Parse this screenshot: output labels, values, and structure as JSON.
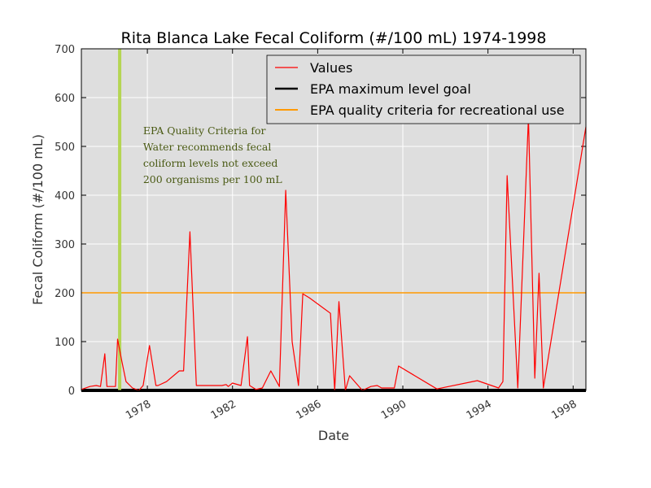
{
  "chart_data": {
    "type": "line",
    "title": "Rita Blanca Lake Fecal Coliform (#/100 mL) 1974-1998",
    "xlabel": "Date",
    "ylabel": "Fecal Coliform (#/100 mL)",
    "xlim": [
      1974.9,
      1998.6
    ],
    "ylim": [
      0,
      700
    ],
    "x_ticks": [
      1978,
      1982,
      1986,
      1990,
      1994,
      1998
    ],
    "y_ticks": [
      0,
      100,
      200,
      300,
      400,
      500,
      600,
      700
    ],
    "grid": true,
    "legend_position": "top-right",
    "series": [
      {
        "name": "Values",
        "color": "#ff0000",
        "x": [
          1974.9,
          1975.3,
          1975.6,
          1975.8,
          1976.0,
          1976.1,
          1976.3,
          1976.5,
          1976.6,
          1976.8,
          1977.0,
          1977.3,
          1977.6,
          1977.8,
          1978.1,
          1978.4,
          1978.5,
          1978.9,
          1979.5,
          1979.7,
          1980.0,
          1980.3,
          1981.0,
          1981.5,
          1981.7,
          1981.8,
          1982.0,
          1982.4,
          1982.7,
          1982.8,
          1983.1,
          1983.4,
          1983.8,
          1984.2,
          1984.5,
          1984.8,
          1985.1,
          1985.3,
          1985.6,
          1986.6,
          1986.8,
          1987.0,
          1987.3,
          1987.5,
          1988.1,
          1988.5,
          1988.8,
          1989.0,
          1989.6,
          1989.8,
          1991.6,
          1993.5,
          1994.5,
          1994.7,
          1994.9,
          1995.4,
          1995.9,
          1996.2,
          1996.4,
          1996.6,
          1998.6
        ],
        "values": [
          2,
          8,
          10,
          8,
          75,
          8,
          8,
          8,
          105,
          60,
          18,
          5,
          0,
          10,
          92,
          10,
          10,
          18,
          40,
          40,
          325,
          10,
          10,
          10,
          12,
          8,
          15,
          10,
          110,
          10,
          2,
          5,
          40,
          8,
          410,
          100,
          10,
          198,
          190,
          158,
          0,
          182,
          0,
          30,
          0,
          8,
          10,
          5,
          5,
          50,
          3,
          20,
          5,
          18,
          440,
          5,
          560,
          25,
          240,
          5,
          540
        ]
      },
      {
        "name": "EPA maximum level goal",
        "color": "#000000",
        "y": 0
      },
      {
        "name": "EPA quality criteria for recreational use",
        "color": "#ff9900",
        "y": 200
      }
    ],
    "vline": {
      "x": 1976.7,
      "color": "#b5d553"
    },
    "annotation": {
      "lines": [
        "EPA Quality Criteria for",
        "Water recommends fecal",
        "coliform levels not exceed",
        "200 organisms per 100 mL"
      ],
      "x": 1977.8,
      "y": 525
    }
  }
}
